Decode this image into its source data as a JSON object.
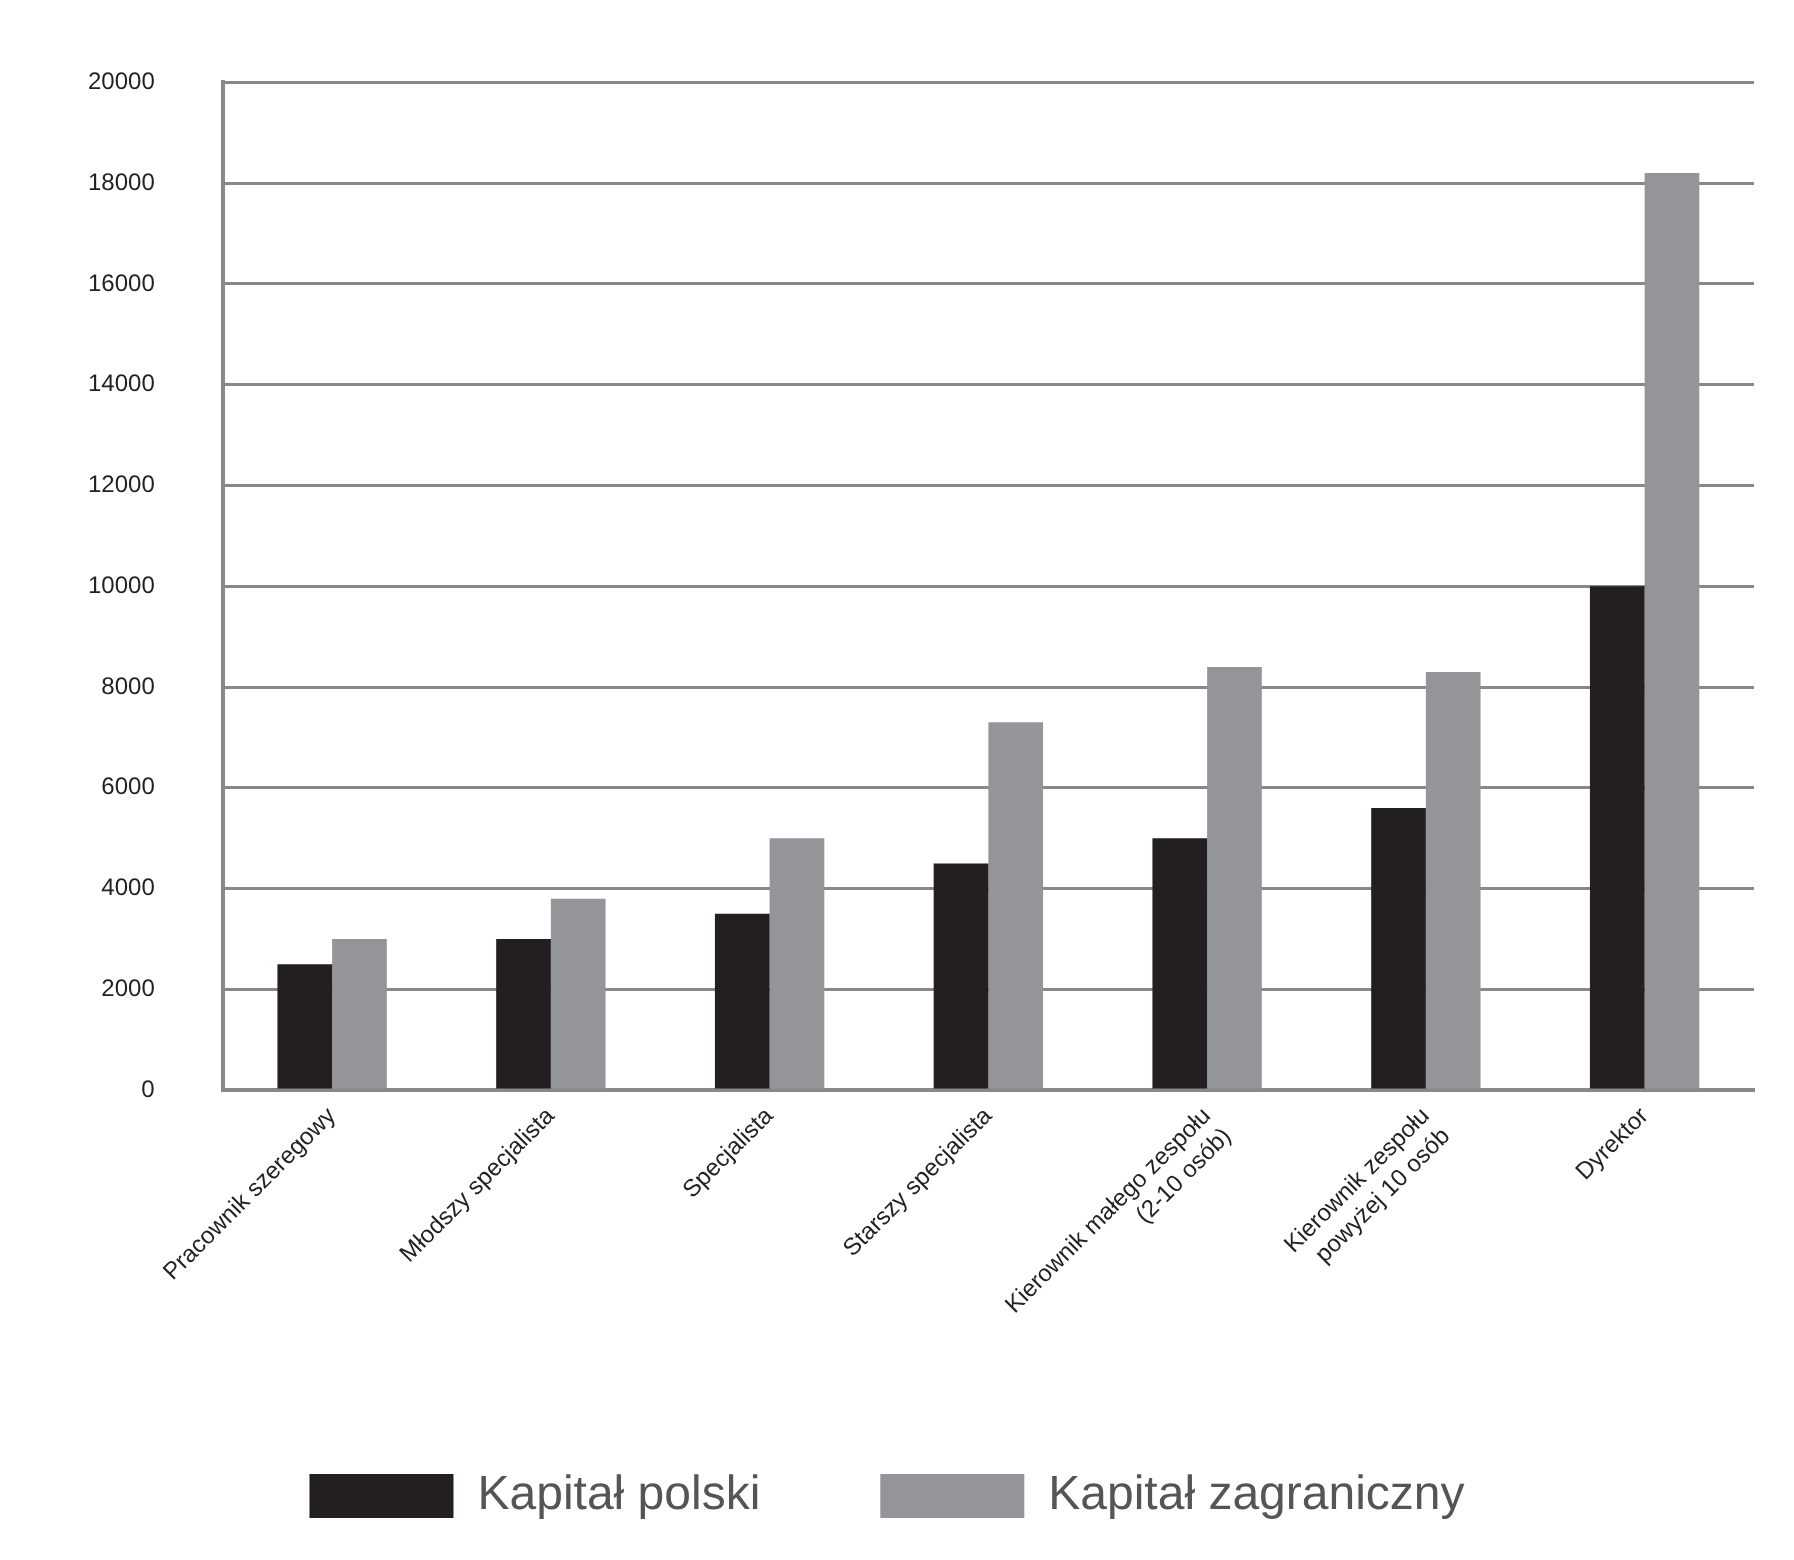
{
  "chart_data": {
    "type": "bar",
    "categories": [
      "Pracownik szeregowy",
      "Młodszy specjalista",
      "Specjalista",
      "Starszy specjalista",
      "Kierownik małego zespołu\n(2-10 osób)",
      "Kierownik zespołu\npowyżej 10 osób",
      "Dyrektor"
    ],
    "series": [
      {
        "name": "Kapitał polski",
        "color": "#231f20",
        "values": [
          2500,
          3000,
          3500,
          4500,
          5000,
          5600,
          10000
        ]
      },
      {
        "name": "Kapitał zagraniczny",
        "color": "#939598",
        "values": [
          3000,
          3800,
          5000,
          7300,
          8400,
          8300,
          18200
        ]
      }
    ],
    "ylim": [
      0,
      20000
    ],
    "yticks": [
      0,
      2000,
      4000,
      6000,
      8000,
      10000,
      12000,
      14000,
      16000,
      18000,
      20000
    ],
    "grid": "y",
    "legend": "bottom"
  }
}
